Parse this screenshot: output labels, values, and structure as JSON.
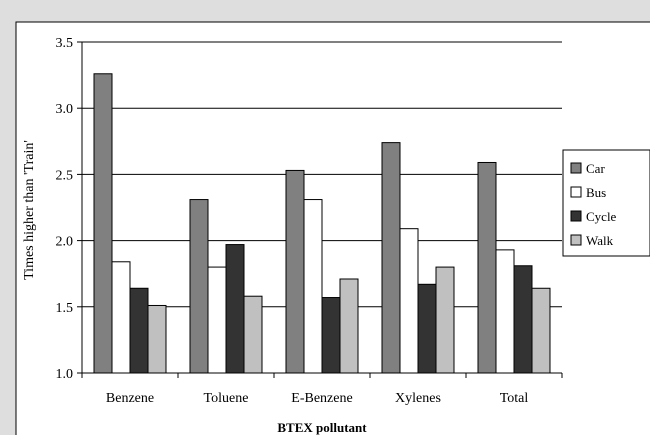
{
  "chart_data": {
    "type": "bar",
    "categories": [
      "Benzene",
      "Toluene",
      "E-Benzene",
      "Xylenes",
      "Total"
    ],
    "series": [
      {
        "name": "Car",
        "color": "#808080",
        "values": [
          3.26,
          2.31,
          2.53,
          2.74,
          2.59
        ]
      },
      {
        "name": "Bus",
        "color": "#ffffff",
        "values": [
          1.84,
          1.8,
          2.31,
          2.09,
          1.93
        ]
      },
      {
        "name": "Cycle",
        "color": "#333333",
        "values": [
          1.64,
          1.97,
          1.57,
          1.67,
          1.81
        ]
      },
      {
        "name": "Walk",
        "color": "#c0c0c0",
        "values": [
          1.51,
          1.58,
          1.71,
          1.8,
          1.64
        ]
      }
    ],
    "xlabel": "BTEX pollutant",
    "ylabel": "Times higher than 'Train'",
    "ylim": [
      1.0,
      3.5
    ],
    "yticks": [
      "1.0",
      "1.5",
      "2.0",
      "2.5",
      "3.0",
      "3.5"
    ],
    "grid": true,
    "legend_position": "right"
  },
  "colors": {
    "frame_background": "#dedede",
    "plot_background": "#ffffff"
  }
}
